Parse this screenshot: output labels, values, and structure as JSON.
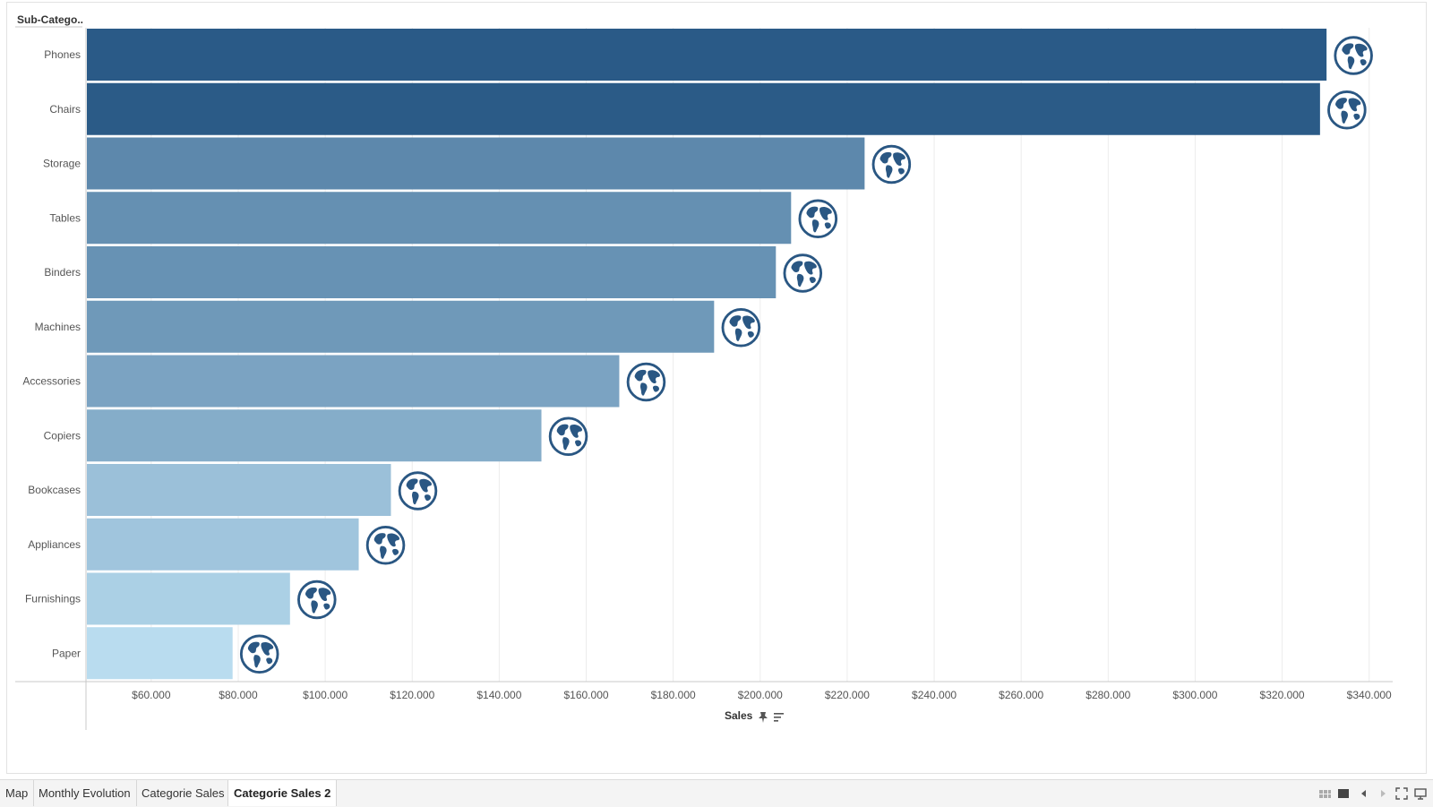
{
  "tabs": [
    {
      "label": "Map",
      "active": false
    },
    {
      "label": "Monthly Evolution",
      "active": false
    },
    {
      "label": "Categorie Sales",
      "active": false
    },
    {
      "label": "Categorie Sales 2",
      "active": true
    }
  ],
  "colors": {
    "bar_darkest": "#2a5a87",
    "bar_lightest": "#b9dcef",
    "globe": "#2a5783",
    "grid": "#ececec",
    "axis": "#c9c9c9"
  },
  "chart_data": {
    "type": "bar",
    "orientation": "horizontal",
    "row_header": "Sub-Catego..",
    "xlabel": "Sales",
    "categories": [
      "Phones",
      "Chairs",
      "Storage",
      "Tables",
      "Binders",
      "Machines",
      "Accessories",
      "Copiers",
      "Bookcases",
      "Appliances",
      "Furnishings",
      "Paper"
    ],
    "values": [
      330000,
      328500,
      223800,
      206900,
      203400,
      189200,
      167400,
      149500,
      114900,
      107500,
      91700,
      78500
    ],
    "xlim": [
      45000,
      345000
    ],
    "xticks": [
      60000,
      80000,
      100000,
      120000,
      140000,
      160000,
      180000,
      200000,
      220000,
      240000,
      260000,
      280000,
      300000,
      320000,
      340000
    ],
    "xtick_labels": [
      "$60.000",
      "$80.000",
      "$100.000",
      "$120.000",
      "$140.000",
      "$160.000",
      "$180.000",
      "$200.000",
      "$220.000",
      "$240.000",
      "$260.000",
      "$280.000",
      "$300.000",
      "$320.000",
      "$340.000"
    ],
    "grid": "vertical",
    "marker_icon": "globe-icon",
    "color_by": "value (sequential blue)"
  }
}
